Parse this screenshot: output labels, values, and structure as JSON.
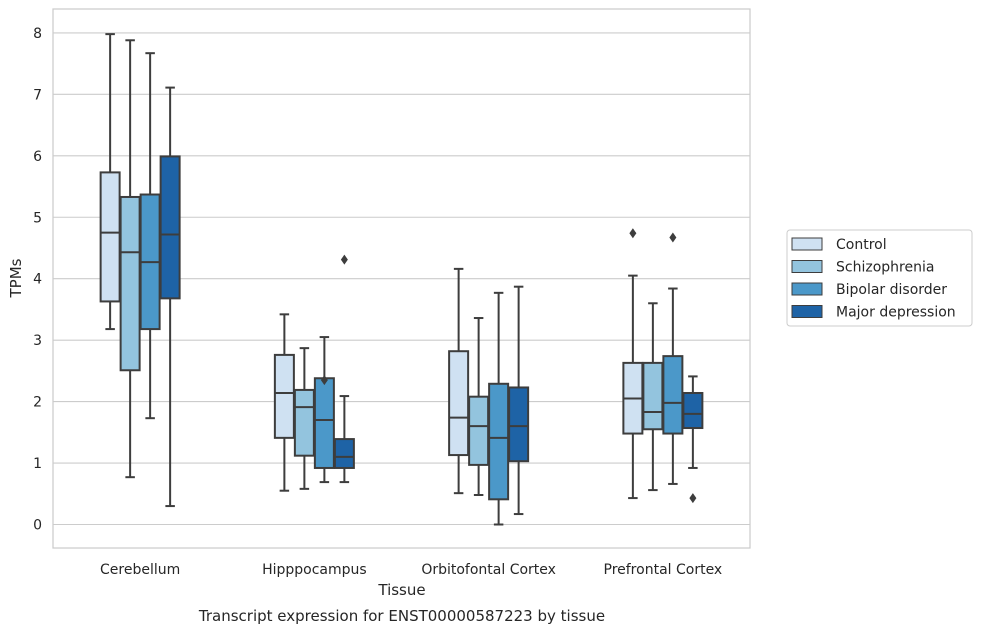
{
  "chart_data": {
    "type": "boxplot",
    "caption": "Transcript expression for ENST00000587223 by tissue",
    "xlabel": "Tissue",
    "ylabel": "TPMs",
    "ylim": [
      -0.38,
      8.4
    ],
    "yticks": [
      0,
      1,
      2,
      3,
      4,
      5,
      6,
      7,
      8
    ],
    "grid": "y",
    "legend_position": "right",
    "categories": [
      "Cerebellum",
      "Hipppocampus",
      "Orbitofontal Cortex",
      "Prefrontal Cortex"
    ],
    "series": [
      {
        "name": "Control",
        "color": "#cfe1f2",
        "boxes": [
          {
            "whislo": 3.18,
            "q1": 3.63,
            "med": 4.75,
            "q3": 5.73,
            "whishi": 7.98,
            "fliers": []
          },
          {
            "whislo": 0.55,
            "q1": 1.41,
            "med": 2.14,
            "q3": 2.76,
            "whishi": 3.42,
            "fliers": []
          },
          {
            "whislo": 0.51,
            "q1": 1.13,
            "med": 1.74,
            "q3": 2.82,
            "whishi": 4.16,
            "fliers": []
          },
          {
            "whislo": 0.43,
            "q1": 1.48,
            "med": 2.05,
            "q3": 2.63,
            "whishi": 4.05,
            "fliers": [
              4.74
            ]
          }
        ]
      },
      {
        "name": "Schizophrenia",
        "color": "#93c4de",
        "boxes": [
          {
            "whislo": 0.77,
            "q1": 2.51,
            "med": 4.43,
            "q3": 5.33,
            "whishi": 7.88,
            "fliers": []
          },
          {
            "whislo": 0.58,
            "q1": 1.12,
            "med": 1.91,
            "q3": 2.19,
            "whishi": 2.87,
            "fliers": []
          },
          {
            "whislo": 0.48,
            "q1": 0.97,
            "med": 1.6,
            "q3": 2.08,
            "whishi": 3.36,
            "fliers": []
          },
          {
            "whislo": 0.56,
            "q1": 1.55,
            "med": 1.83,
            "q3": 2.63,
            "whishi": 3.6,
            "fliers": []
          }
        ]
      },
      {
        "name": "Bipolar disorder",
        "color": "#4b98c9",
        "boxes": [
          {
            "whislo": 1.73,
            "q1": 3.18,
            "med": 4.27,
            "q3": 5.37,
            "whishi": 7.67,
            "fliers": []
          },
          {
            "whislo": 0.69,
            "q1": 0.92,
            "med": 1.7,
            "q3": 2.38,
            "whishi": 3.05,
            "fliers": [
              2.35
            ]
          },
          {
            "whislo": 0.0,
            "q1": 0.41,
            "med": 1.41,
            "q3": 2.29,
            "whishi": 3.77,
            "fliers": []
          },
          {
            "whislo": 0.66,
            "q1": 1.48,
            "med": 1.98,
            "q3": 2.74,
            "whishi": 3.84,
            "fliers": [
              4.67
            ]
          }
        ]
      },
      {
        "name": "Major depression",
        "color": "#1e63a6",
        "boxes": [
          {
            "whislo": 0.3,
            "q1": 3.68,
            "med": 4.72,
            "q3": 5.99,
            "whishi": 7.11,
            "fliers": []
          },
          {
            "whislo": 0.69,
            "q1": 0.92,
            "med": 1.1,
            "q3": 1.39,
            "whishi": 2.09,
            "fliers": [
              4.31
            ]
          },
          {
            "whislo": 0.17,
            "q1": 1.03,
            "med": 1.6,
            "q3": 2.23,
            "whishi": 3.87,
            "fliers": []
          },
          {
            "whislo": 0.92,
            "q1": 1.57,
            "med": 1.8,
            "q3": 2.14,
            "whishi": 2.41,
            "fliers": [
              0.43
            ]
          }
        ]
      }
    ]
  }
}
